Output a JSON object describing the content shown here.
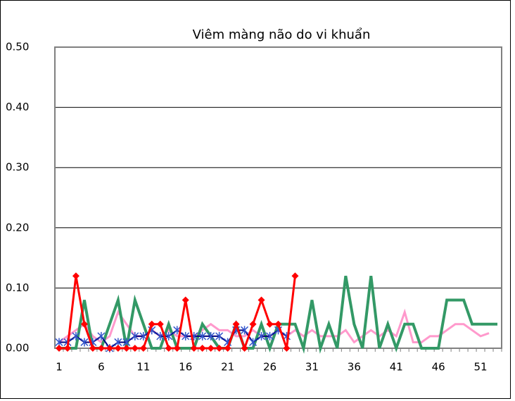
{
  "chart_data": {
    "type": "line",
    "title": "Viêm màng não do vi khuẩn",
    "categories": [
      "1",
      null,
      null,
      null,
      null,
      "6",
      null,
      null,
      null,
      null,
      "11",
      null,
      null,
      null,
      null,
      "16",
      null,
      null,
      null,
      null,
      "21",
      null,
      null,
      null,
      null,
      "26",
      null,
      null,
      null,
      null,
      "31",
      null,
      null,
      null,
      null,
      "36",
      null,
      null,
      null,
      null,
      "41",
      null,
      null,
      null,
      null,
      "46",
      null,
      null,
      null,
      null,
      "51",
      null,
      null
    ],
    "ylim": [
      0,
      0.5
    ],
    "yticks": [
      {
        "value": 0,
        "label": "0.00"
      },
      {
        "value": 0.1,
        "label": "0.10"
      },
      {
        "value": 0.2,
        "label": "0.20"
      },
      {
        "value": 0.3,
        "label": "0.30"
      },
      {
        "value": 0.4,
        "label": "0.40"
      },
      {
        "value": 0.5,
        "label": "0.50"
      }
    ],
    "grid": true,
    "series": [
      {
        "color": "#ff99cc",
        "width": 3,
        "marker": "none",
        "values": [
          0.01,
          0.02,
          0.03,
          0.04,
          0.02,
          0.01,
          0.02,
          0.06,
          0.04,
          0.02,
          0.02,
          0.03,
          0.02,
          0.03,
          0.02,
          0.02,
          0.02,
          0.03,
          0.04,
          0.03,
          0.03,
          0.02,
          0.02,
          0.03,
          0.02,
          0.02,
          0.03,
          0.02,
          0.03,
          0.02,
          0.03,
          0.02,
          0.02,
          0.02,
          0.03,
          0.01,
          0.02,
          0.03,
          0.02,
          0.03,
          0.02,
          0.06,
          0.01,
          0.01,
          0.02,
          0.02,
          0.03,
          0.04,
          0.04,
          0.03,
          0.02,
          0.025,
          null
        ]
      },
      {
        "color": "#339966",
        "width": 4,
        "marker": "none",
        "values": [
          0,
          0,
          0,
          0.08,
          0,
          0,
          0.04,
          0.08,
          0,
          0.08,
          0.04,
          0,
          0,
          0.04,
          0,
          0,
          0,
          0.04,
          0.02,
          0,
          0,
          0.04,
          0,
          0,
          0.04,
          0,
          0.04,
          0.04,
          0.04,
          0,
          0.08,
          0,
          0.04,
          0,
          0.12,
          0.04,
          0,
          0.12,
          0,
          0.04,
          0,
          0.04,
          0.04,
          0,
          0,
          0,
          0.08,
          0.08,
          0.08,
          0.04,
          0.04,
          0.04,
          0.04
        ]
      },
      {
        "color": "#000080",
        "width": 2,
        "marker": "star",
        "values": [
          0.01,
          0.01,
          0.02,
          0.01,
          0.01,
          0.02,
          0.0,
          0.01,
          0.01,
          0.02,
          0.02,
          0.03,
          0.02,
          0.02,
          0.03,
          0.02,
          0.02,
          0.02,
          0.02,
          0.02,
          0.01,
          0.03,
          0.03,
          0.01,
          0.02,
          0.02,
          0.03,
          0.02,
          null,
          null,
          null,
          null,
          null,
          null,
          null,
          null,
          null,
          null,
          null,
          null,
          null,
          null,
          null,
          null,
          null,
          null,
          null,
          null,
          null,
          null,
          null,
          null,
          null
        ]
      },
      {
        "color": "#ff0000",
        "width": 3,
        "marker": "diamond",
        "values": [
          0,
          0,
          0.12,
          0.04,
          0,
          0,
          0,
          0,
          0,
          0,
          0,
          0.04,
          0.04,
          0,
          0,
          0.08,
          0,
          0,
          0,
          0,
          0,
          0.04,
          0,
          0.04,
          0.08,
          0.04,
          0.04,
          0,
          0.12,
          null,
          null,
          null,
          null,
          null,
          null,
          null,
          null,
          null,
          null,
          null,
          null,
          null,
          null,
          null,
          null,
          null,
          null,
          null,
          null,
          null,
          null,
          null,
          null
        ]
      }
    ]
  }
}
